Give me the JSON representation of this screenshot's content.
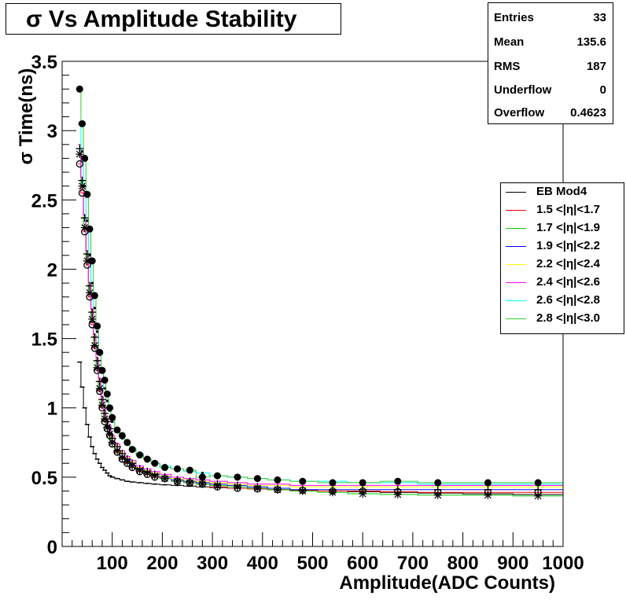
{
  "title": "σ Vs Amplitude Stability",
  "stats": [
    {
      "key": "Entries",
      "value": "33"
    },
    {
      "key": "Mean",
      "value": "135.6"
    },
    {
      "key": "RMS",
      "value": "187"
    },
    {
      "key": "Underflow",
      "value": "0"
    },
    {
      "key": "Overflow",
      "value": "0.4623"
    }
  ],
  "colors": {
    "black": "#000000",
    "red": "#ff0000",
    "green": "#00cc00",
    "blue": "#0000ff",
    "yellow": "#ffff00",
    "magenta": "#ff00ff",
    "cyan": "#00ffff",
    "lightgreen": "#33cc33"
  },
  "chart_data": {
    "type": "scatter",
    "xlabel": "Amplitude(ADC Counts)",
    "ylabel": "σ Time(ns)",
    "xlim": [
      0,
      1000
    ],
    "ylim": [
      0,
      3.5
    ],
    "xticks": [
      "100",
      "200",
      "300",
      "400",
      "500",
      "600",
      "700",
      "800",
      "900",
      "1000"
    ],
    "yticks": [
      "0",
      "0.5",
      "1",
      "1.5",
      "2",
      "2.5",
      "3",
      "3.5"
    ],
    "grid": false,
    "legend_position": "right",
    "x": [
      35,
      40,
      45,
      50,
      55,
      60,
      65,
      70,
      75,
      80,
      85,
      90,
      95,
      100,
      110,
      120,
      130,
      140,
      155,
      170,
      185,
      205,
      230,
      255,
      280,
      310,
      350,
      390,
      430,
      480,
      540,
      600,
      670,
      750,
      850,
      950
    ],
    "series": [
      {
        "name": "EB Mod4",
        "color": "#000000",
        "marker": "dash",
        "values": [
          1.33,
          1.15,
          1.0,
          0.88,
          0.79,
          0.72,
          0.67,
          0.63,
          0.6,
          0.57,
          0.55,
          0.53,
          0.51,
          0.5,
          0.49,
          0.48,
          0.47,
          0.465,
          0.46,
          0.455,
          0.45,
          0.445,
          0.44,
          0.435,
          0.43,
          0.425,
          0.42,
          0.415,
          0.41,
          0.405,
          0.4,
          0.395,
          0.39,
          0.385,
          0.38,
          0.375
        ]
      },
      {
        "name": "1.5 <|η|<1.7",
        "color": "#ff0000",
        "marker": "circle-open",
        "values": [
          2.76,
          2.55,
          2.27,
          2.03,
          1.8,
          1.6,
          1.43,
          1.27,
          1.12,
          1.0,
          0.9,
          0.85,
          0.8,
          0.74,
          0.68,
          0.63,
          0.6,
          0.57,
          0.54,
          0.52,
          0.5,
          0.49,
          0.47,
          0.46,
          0.45,
          0.43,
          0.42,
          0.415,
          0.41,
          0.405,
          0.4,
          0.4,
          0.395,
          0.39,
          0.39,
          0.39
        ]
      },
      {
        "name": "1.7 <|η|<1.9",
        "color": "#00cc00",
        "marker": "star",
        "values": [
          2.83,
          2.6,
          2.3,
          2.06,
          1.83,
          1.64,
          1.45,
          1.29,
          1.14,
          1.02,
          0.92,
          0.86,
          0.81,
          0.75,
          0.69,
          0.64,
          0.61,
          0.58,
          0.55,
          0.53,
          0.51,
          0.49,
          0.47,
          0.46,
          0.45,
          0.44,
          0.43,
          0.42,
          0.41,
          0.4,
          0.39,
          0.38,
          0.375,
          0.37,
          0.37,
          0.365
        ]
      },
      {
        "name": "1.9 <|η|<2.2",
        "color": "#0000ff",
        "marker": "plus",
        "values": [
          2.87,
          2.64,
          2.37,
          2.11,
          1.88,
          1.69,
          1.51,
          1.34,
          1.19,
          1.06,
          0.96,
          0.9,
          0.85,
          0.78,
          0.72,
          0.67,
          0.63,
          0.6,
          0.56,
          0.54,
          0.52,
          0.5,
          0.48,
          0.47,
          0.46,
          0.45,
          0.44,
          0.43,
          0.42,
          0.41,
          0.41,
          0.41,
          0.41,
          0.41,
          0.41,
          0.41
        ]
      },
      {
        "name": "2.2 <|η|<2.4",
        "color": "#ffff00",
        "marker": "none",
        "values": [
          2.9,
          2.65,
          2.38,
          2.12,
          1.89,
          1.7,
          1.52,
          1.35,
          1.2,
          1.07,
          0.97,
          0.91,
          0.86,
          0.79,
          0.73,
          0.68,
          0.64,
          0.61,
          0.57,
          0.55,
          0.53,
          0.51,
          0.49,
          0.48,
          0.47,
          0.46,
          0.45,
          0.44,
          0.44,
          0.43,
          0.43,
          0.43,
          0.43,
          0.43,
          0.43,
          0.43
        ]
      },
      {
        "name": "2.4 <|η|<2.6",
        "color": "#ff00ff",
        "marker": "none",
        "values": [
          2.9,
          2.66,
          2.39,
          2.13,
          1.9,
          1.71,
          1.53,
          1.36,
          1.21,
          1.08,
          0.98,
          0.92,
          0.87,
          0.8,
          0.74,
          0.69,
          0.65,
          0.62,
          0.58,
          0.56,
          0.54,
          0.52,
          0.5,
          0.49,
          0.48,
          0.47,
          0.46,
          0.45,
          0.45,
          0.44,
          0.44,
          0.44,
          0.44,
          0.44,
          0.44,
          0.44
        ]
      },
      {
        "name": "2.6 <|η|<2.8",
        "color": "#00ffff",
        "marker": "square-dot",
        "values": [
          3.05,
          2.85,
          2.6,
          2.35,
          2.1,
          1.9,
          1.72,
          1.55,
          1.4,
          1.26,
          1.14,
          1.05,
          0.98,
          0.9,
          0.84,
          0.78,
          0.74,
          0.71,
          0.67,
          0.63,
          0.6,
          0.58,
          0.56,
          0.54,
          0.53,
          0.51,
          0.5,
          0.49,
          0.48,
          0.47,
          0.47,
          0.46,
          0.46,
          0.45,
          0.45,
          0.45
        ]
      },
      {
        "name": "2.8 <|η|<3.0",
        "color": "#33cc33",
        "marker": "circle-filled",
        "values": [
          3.3,
          3.05,
          2.8,
          2.54,
          2.29,
          2.06,
          1.81,
          1.59,
          1.4,
          1.27,
          1.2,
          1.1,
          1.0,
          0.93,
          0.84,
          0.8,
          0.75,
          0.7,
          0.66,
          0.63,
          0.6,
          0.57,
          0.56,
          0.55,
          0.5,
          0.51,
          0.5,
          0.49,
          0.48,
          0.47,
          0.46,
          0.46,
          0.47,
          0.46,
          0.46,
          0.46
        ]
      }
    ]
  }
}
